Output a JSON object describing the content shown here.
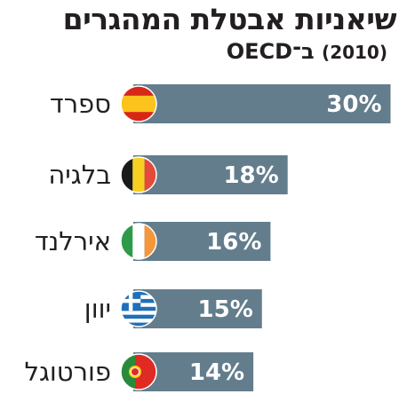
{
  "title": "שיאניות אבטלת המהגרים",
  "subtitle": "ב־OECD",
  "subtitle_year": "(2010)",
  "colors": {
    "bar": "#637d8c",
    "bar_text": "#ffffff",
    "text": "#231f20"
  },
  "chart_data": {
    "type": "bar",
    "orientation": "horizontal",
    "title": "שיאניות אבטלת המהגרים",
    "subtitle": "ב־OECD (2010)",
    "categories": [
      "ספרד",
      "בלגיה",
      "אירלנד",
      "יוון",
      "פורטוגל"
    ],
    "values": [
      30,
      18,
      16,
      15,
      14
    ],
    "value_labels": [
      "30%",
      "18%",
      "16%",
      "15%",
      "14%"
    ],
    "flags": [
      "spain-flag-icon",
      "belgium-flag-icon",
      "ireland-flag-icon",
      "greece-flag-icon",
      "portugal-flag-icon"
    ],
    "unit": "%",
    "grid": false,
    "legend": "none"
  }
}
